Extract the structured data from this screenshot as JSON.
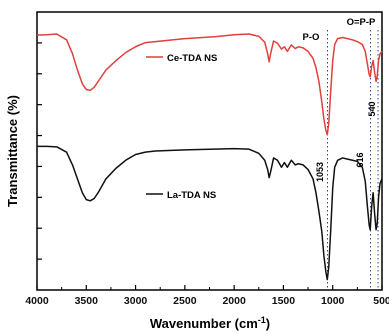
{
  "chart_data": {
    "type": "line",
    "title": "",
    "xlabel": "Wavenumber (cm",
    "xlabel_sup": "-1",
    "xlabel_close": ")",
    "ylabel": "Transmittance (%)",
    "xlim": [
      4000,
      500
    ],
    "x_reversed": true,
    "x_ticks": [
      "4000",
      "3500",
      "3000",
      "2500",
      "2000",
      "1500",
      "1000",
      "500"
    ],
    "y_ticks_labeled": false,
    "grid": false,
    "legend_placement": "inline",
    "series": [
      {
        "name": "Ce-TDA NS",
        "color": "#e0413c",
        "points": [
          [
            4000,
            0.9
          ],
          [
            3900,
            0.902
          ],
          [
            3800,
            0.905
          ],
          [
            3700,
            0.88
          ],
          [
            3640,
            0.82
          ],
          [
            3590,
            0.75
          ],
          [
            3540,
            0.69
          ],
          [
            3500,
            0.665
          ],
          [
            3460,
            0.662
          ],
          [
            3420,
            0.675
          ],
          [
            3380,
            0.7
          ],
          [
            3300,
            0.75
          ],
          [
            3200,
            0.79
          ],
          [
            3100,
            0.825
          ],
          [
            3000,
            0.85
          ],
          [
            2900,
            0.868
          ],
          [
            2800,
            0.872
          ],
          [
            2500,
            0.885
          ],
          [
            2200,
            0.893
          ],
          [
            2000,
            0.902
          ],
          [
            1850,
            0.905
          ],
          [
            1750,
            0.895
          ],
          [
            1690,
            0.87
          ],
          [
            1660,
            0.82
          ],
          [
            1645,
            0.785
          ],
          [
            1630,
            0.82
          ],
          [
            1600,
            0.875
          ],
          [
            1560,
            0.865
          ],
          [
            1520,
            0.84
          ],
          [
            1490,
            0.85
          ],
          [
            1460,
            0.83
          ],
          [
            1420,
            0.858
          ],
          [
            1380,
            0.842
          ],
          [
            1350,
            0.85
          ],
          [
            1300,
            0.845
          ],
          [
            1250,
            0.83
          ],
          [
            1200,
            0.8
          ],
          [
            1170,
            0.76
          ],
          [
            1140,
            0.7
          ],
          [
            1110,
            0.61
          ],
          [
            1090,
            0.54
          ],
          [
            1070,
            0.49
          ],
          [
            1055,
            0.47
          ],
          [
            1040,
            0.52
          ],
          [
            1020,
            0.66
          ],
          [
            1000,
            0.79
          ],
          [
            980,
            0.86
          ],
          [
            950,
            0.885
          ],
          [
            900,
            0.89
          ],
          [
            850,
            0.885
          ],
          [
            800,
            0.88
          ],
          [
            750,
            0.872
          ],
          [
            700,
            0.86
          ],
          [
            670,
            0.83
          ],
          [
            650,
            0.78
          ],
          [
            630,
            0.73
          ],
          [
            620,
            0.72
          ],
          [
            605,
            0.765
          ],
          [
            590,
            0.79
          ],
          [
            575,
            0.74
          ],
          [
            560,
            0.7
          ],
          [
            548,
            0.725
          ],
          [
            535,
            0.79
          ],
          [
            520,
            0.82
          ],
          [
            500,
            0.83
          ]
        ]
      },
      {
        "name": "La-TDA NS",
        "color": "#111111",
        "points": [
          [
            4000,
            0.42
          ],
          [
            3900,
            0.42
          ],
          [
            3800,
            0.418
          ],
          [
            3700,
            0.395
          ],
          [
            3640,
            0.34
          ],
          [
            3590,
            0.28
          ],
          [
            3540,
            0.22
          ],
          [
            3500,
            0.19
          ],
          [
            3460,
            0.185
          ],
          [
            3420,
            0.195
          ],
          [
            3380,
            0.22
          ],
          [
            3300,
            0.28
          ],
          [
            3200,
            0.325
          ],
          [
            3100,
            0.36
          ],
          [
            3000,
            0.385
          ],
          [
            2900,
            0.395
          ],
          [
            2800,
            0.4
          ],
          [
            2500,
            0.405
          ],
          [
            2200,
            0.408
          ],
          [
            2000,
            0.41
          ],
          [
            1850,
            0.408
          ],
          [
            1750,
            0.39
          ],
          [
            1690,
            0.36
          ],
          [
            1660,
            0.32
          ],
          [
            1645,
            0.285
          ],
          [
            1630,
            0.31
          ],
          [
            1600,
            0.37
          ],
          [
            1560,
            0.36
          ],
          [
            1520,
            0.33
          ],
          [
            1490,
            0.35
          ],
          [
            1460,
            0.33
          ],
          [
            1420,
            0.36
          ],
          [
            1380,
            0.34
          ],
          [
            1350,
            0.345
          ],
          [
            1300,
            0.34
          ],
          [
            1250,
            0.32
          ],
          [
            1200,
            0.28
          ],
          [
            1170,
            0.22
          ],
          [
            1140,
            0.14
          ],
          [
            1110,
            0.05
          ],
          [
            1090,
            -0.05
          ],
          [
            1070,
            -0.12
          ],
          [
            1055,
            -0.155
          ],
          [
            1040,
            -0.1
          ],
          [
            1020,
            0.06
          ],
          [
            1000,
            0.24
          ],
          [
            980,
            0.33
          ],
          [
            950,
            0.36
          ],
          [
            900,
            0.37
          ],
          [
            850,
            0.365
          ],
          [
            800,
            0.36
          ],
          [
            750,
            0.355
          ],
          [
            700,
            0.33
          ],
          [
            670,
            0.27
          ],
          [
            650,
            0.17
          ],
          [
            630,
            0.08
          ],
          [
            620,
            0.06
          ],
          [
            605,
            0.16
          ],
          [
            590,
            0.22
          ],
          [
            575,
            0.13
          ],
          [
            560,
            0.06
          ],
          [
            548,
            0.09
          ],
          [
            535,
            0.2
          ],
          [
            520,
            0.26
          ],
          [
            500,
            0.28
          ]
        ]
      }
    ],
    "ylim": [
      -0.2,
      1.0
    ],
    "annotations": {
      "po": "P-O",
      "opp": "O=P-P",
      "p1053": "1053",
      "p616": "616",
      "p540": "540"
    },
    "marker_lines_x": [
      1053,
      616,
      540
    ]
  }
}
